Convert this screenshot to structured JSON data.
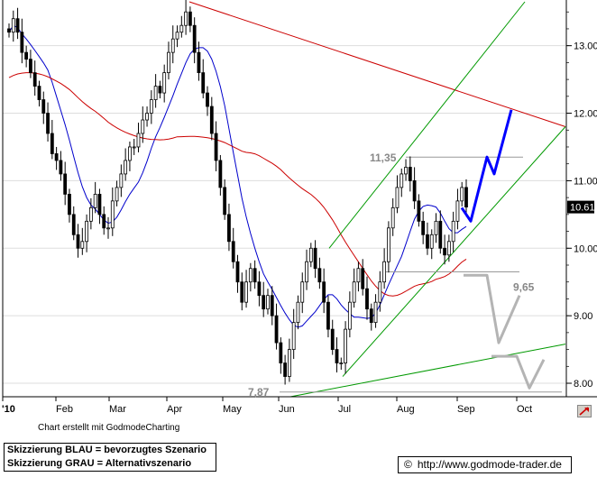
{
  "chart_data": {
    "type": "candlestick",
    "year_marker": "'10",
    "x_month_labels": [
      "Feb",
      "Mar",
      "Apr",
      "May",
      "Jun",
      "Jul",
      "Aug",
      "Sep",
      "Oct"
    ],
    "y_tick_labels": [
      "13.00",
      "12.00",
      "11.00",
      "10.00",
      "9.00",
      "8.00"
    ],
    "y_ticks": [
      13,
      12,
      11,
      10,
      9,
      8
    ],
    "ylim": [
      7.8,
      13.65
    ],
    "last_price_label": "10.61",
    "last_price": 10.61,
    "annotations": [
      {
        "text": "11,35",
        "value": 11.35
      },
      {
        "text": "9,65",
        "value": 9.65
      },
      {
        "text": "7,87",
        "value": 7.87
      }
    ],
    "ma_fast_color": "#0000cc",
    "ma_slow_color": "#cc0000",
    "trend_color": "#009900",
    "blue_scenario_color": "#0000ff",
    "grey_scenario_color": "#b4b4b4",
    "closes": [
      13.2,
      13.4,
      13.2,
      12.9,
      12.8,
      12.6,
      12.4,
      12.2,
      12.0,
      11.7,
      11.4,
      11.3,
      11.1,
      10.8,
      10.5,
      10.2,
      10.0,
      10.1,
      10.4,
      10.6,
      10.8,
      10.5,
      10.3,
      10.3,
      10.7,
      10.9,
      11.1,
      11.3,
      11.5,
      11.5,
      11.7,
      11.9,
      12.0,
      12.2,
      12.4,
      12.3,
      12.6,
      12.9,
      13.1,
      13.2,
      13.3,
      13.5,
      13.3,
      12.9,
      12.6,
      12.3,
      12.1,
      11.7,
      11.3,
      10.9,
      10.5,
      10.1,
      9.8,
      9.5,
      9.2,
      9.5,
      9.7,
      9.5,
      9.3,
      9.1,
      9.3,
      9.0,
      8.6,
      8.3,
      8.1,
      8.5,
      8.9,
      9.2,
      9.5,
      9.8,
      10.0,
      9.7,
      9.5,
      9.2,
      8.8,
      8.5,
      8.3,
      8.3,
      8.8,
      9.2,
      9.5,
      9.7,
      9.4,
      9.1,
      8.9,
      9.2,
      9.5,
      9.8,
      10.3,
      10.6,
      10.9,
      11.1,
      11.2,
      11.0,
      10.7,
      10.4,
      10.2,
      10.0,
      10.2,
      10.4,
      10.0,
      9.9,
      10.1,
      10.4,
      10.7,
      10.9,
      10.61
    ]
  },
  "footer": {
    "credit": "Chart erstellt mit GodmodeCharting",
    "legend_blue": "Skizzierung BLAU = bevorzugtes Szenario",
    "legend_grey": "Skizzierung GRAU = Alternativszenario",
    "url": "http://www.godmode-trader.de",
    "copyright_symbol": "©"
  },
  "nav": {
    "arrow_icon": "right-arrow-icon"
  }
}
